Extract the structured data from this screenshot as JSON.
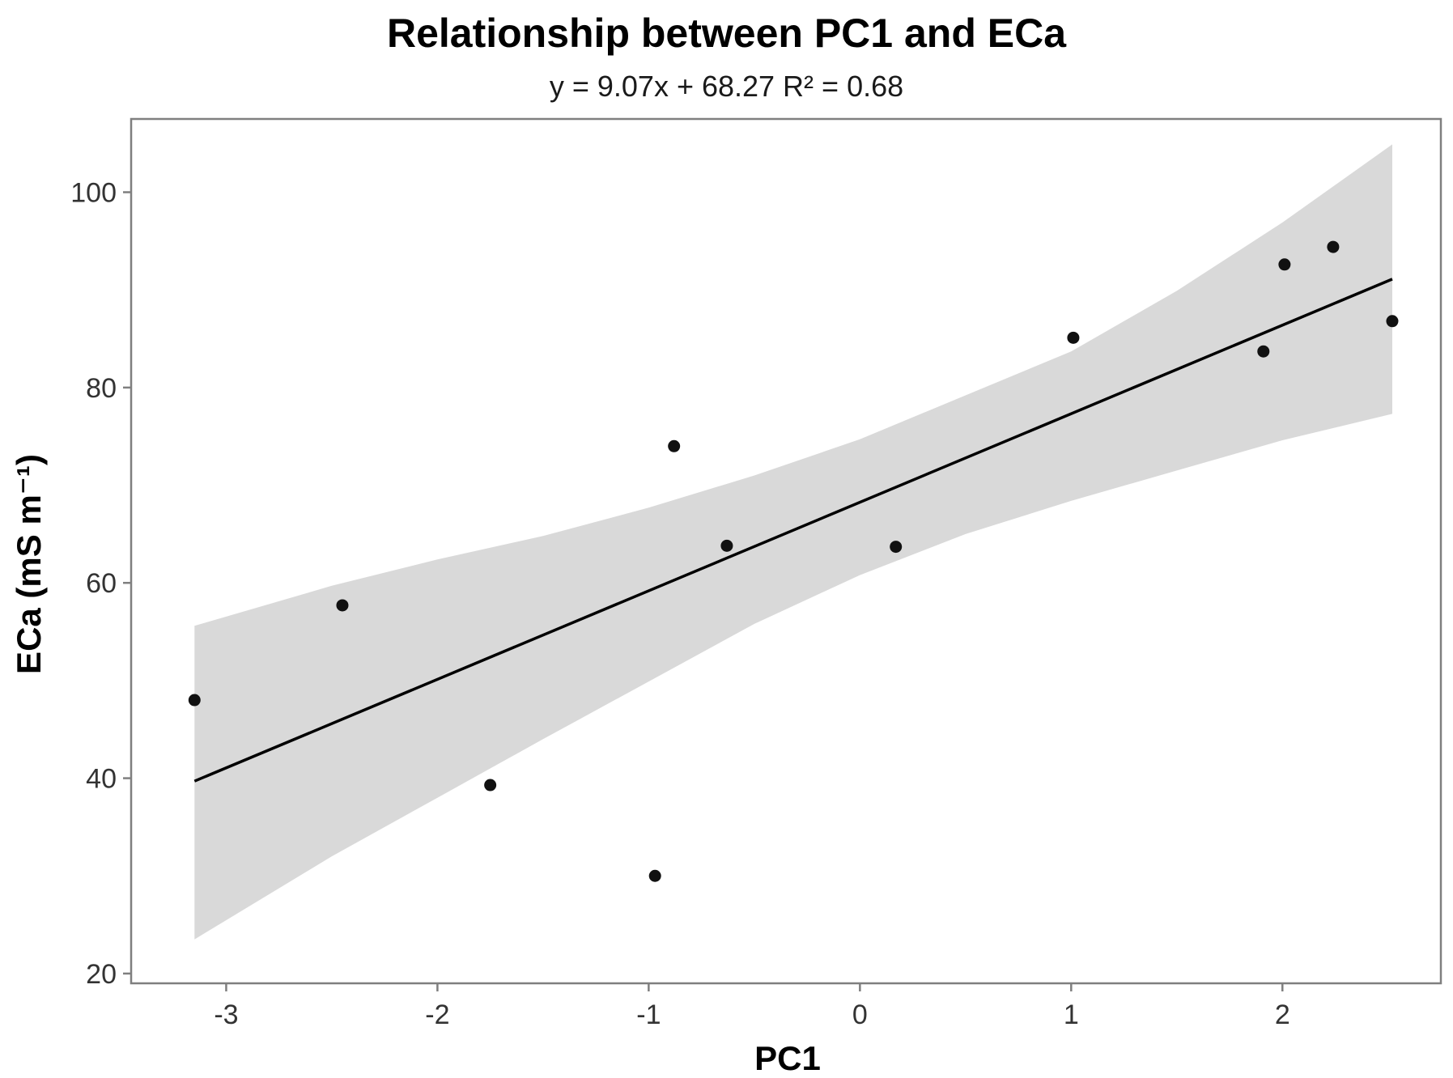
{
  "chart_data": {
    "type": "scatter",
    "title": "Relationship between PC1 and ECa",
    "subtitle": "y = 9.07x + 68.27   R² = 0.68",
    "xlabel": "PC1",
    "ylabel": "ECa (mS m⁻¹)",
    "xlim": [
      -3.45,
      2.75
    ],
    "ylim": [
      19.0,
      107.5
    ],
    "x_ticks": [
      -3,
      -2,
      -1,
      0,
      1,
      2
    ],
    "y_ticks": [
      20,
      40,
      60,
      80,
      100
    ],
    "grid": false,
    "points": [
      {
        "x": -3.15,
        "y": 48.0
      },
      {
        "x": -2.45,
        "y": 57.7
      },
      {
        "x": -1.75,
        "y": 39.3
      },
      {
        "x": -0.97,
        "y": 30.0
      },
      {
        "x": -0.88,
        "y": 74.0
      },
      {
        "x": -0.63,
        "y": 63.8
      },
      {
        "x": 0.17,
        "y": 63.7
      },
      {
        "x": 1.01,
        "y": 85.1
      },
      {
        "x": 1.91,
        "y": 83.7
      },
      {
        "x": 2.01,
        "y": 92.6
      },
      {
        "x": 2.24,
        "y": 94.4
      },
      {
        "x": 2.52,
        "y": 86.8
      }
    ],
    "regression_line": {
      "x": [
        -3.15,
        2.52
      ],
      "y": [
        39.7,
        91.1
      ]
    },
    "confidence_band": {
      "x": [
        -3.15,
        -2.5,
        -2.0,
        -1.5,
        -1.0,
        -0.5,
        0.0,
        0.5,
        1.0,
        1.5,
        2.0,
        2.52
      ],
      "upper": [
        55.6,
        59.7,
        62.4,
        64.8,
        67.7,
        71.0,
        74.7,
        79.2,
        83.7,
        89.9,
        96.9,
        104.9
      ],
      "lower": [
        23.5,
        32.0,
        38.0,
        44.0,
        49.9,
        55.8,
        60.8,
        65.0,
        68.4,
        71.5,
        74.6,
        77.3
      ]
    },
    "colors": {
      "point": "#111111",
      "line": "#000000",
      "band": "#d9d9d9",
      "frame": "#7f7f7f",
      "axis_text": "#333333"
    }
  }
}
